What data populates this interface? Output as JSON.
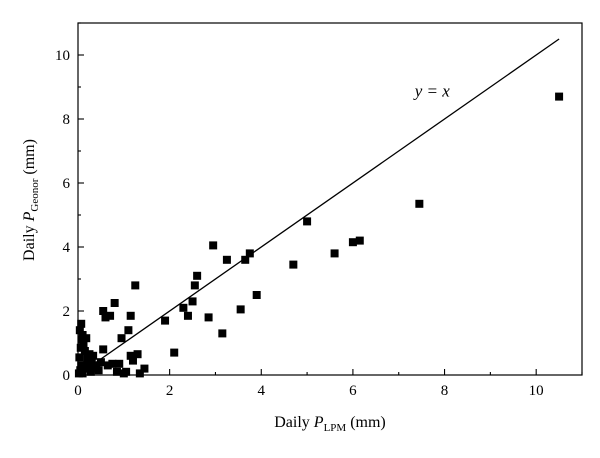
{
  "chart_data": {
    "type": "scatter",
    "xlabel": {
      "prefix": "Daily ",
      "var": "P",
      "sub": "LPM",
      "suffix": " (mm)"
    },
    "ylabel": {
      "prefix": "Daily ",
      "var": "P",
      "sub": "Geonor",
      "suffix": " (mm)"
    },
    "xlim": [
      0,
      11
    ],
    "ylim": [
      0,
      11
    ],
    "xticks": [
      0,
      2,
      4,
      6,
      8,
      10
    ],
    "yticks": [
      0,
      2,
      4,
      6,
      8,
      10
    ],
    "grid": false,
    "reference_line": {
      "label": "y = x",
      "slope": 1,
      "x_range": [
        0,
        10.5
      ]
    },
    "marker": {
      "shape": "square",
      "color": "#000000"
    },
    "series": [
      {
        "points": [
          [
            0.02,
            0.05
          ],
          [
            0.05,
            0.15
          ],
          [
            0.07,
            0.3
          ],
          [
            0.03,
            0.55
          ],
          [
            0.06,
            0.85
          ],
          [
            0.08,
            1.1
          ],
          [
            0.04,
            1.4
          ],
          [
            0.07,
            1.6
          ],
          [
            0.1,
            1.25
          ],
          [
            0.12,
            0.95
          ],
          [
            0.15,
            0.75
          ],
          [
            0.18,
            1.15
          ],
          [
            0.2,
            0.5
          ],
          [
            0.22,
            0.25
          ],
          [
            0.25,
            0.65
          ],
          [
            0.28,
            0.1
          ],
          [
            0.3,
            0.4
          ],
          [
            0.33,
            0.6
          ],
          [
            0.35,
            0.2
          ],
          [
            0.4,
            0.3
          ],
          [
            0.45,
            0.15
          ],
          [
            0.5,
            0.4
          ],
          [
            0.1,
            0.05
          ],
          [
            0.15,
            0.2
          ],
          [
            0.55,
            2.0
          ],
          [
            0.6,
            1.8
          ],
          [
            0.7,
            1.85
          ],
          [
            0.8,
            2.25
          ],
          [
            0.55,
            0.8
          ],
          [
            0.65,
            0.3
          ],
          [
            0.75,
            0.35
          ],
          [
            0.85,
            0.1
          ],
          [
            0.9,
            0.35
          ],
          [
            0.95,
            1.15
          ],
          [
            1.0,
            0.05
          ],
          [
            1.05,
            0.1
          ],
          [
            1.1,
            1.4
          ],
          [
            1.15,
            1.85
          ],
          [
            1.15,
            0.6
          ],
          [
            1.2,
            0.45
          ],
          [
            1.25,
            2.8
          ],
          [
            1.3,
            0.65
          ],
          [
            1.35,
            0.05
          ],
          [
            1.45,
            0.2
          ],
          [
            1.9,
            1.7
          ],
          [
            2.1,
            0.7
          ],
          [
            2.3,
            2.1
          ],
          [
            2.4,
            1.85
          ],
          [
            2.5,
            2.3
          ],
          [
            2.55,
            2.8
          ],
          [
            2.6,
            3.1
          ],
          [
            2.85,
            1.8
          ],
          [
            2.95,
            4.05
          ],
          [
            3.15,
            1.3
          ],
          [
            3.25,
            3.6
          ],
          [
            3.55,
            2.05
          ],
          [
            3.65,
            3.6
          ],
          [
            3.75,
            3.8
          ],
          [
            3.9,
            2.5
          ],
          [
            4.7,
            3.45
          ],
          [
            5.0,
            4.8
          ],
          [
            5.6,
            3.8
          ],
          [
            6.0,
            4.15
          ],
          [
            6.15,
            4.2
          ],
          [
            7.45,
            5.35
          ],
          [
            10.5,
            8.7
          ]
        ]
      }
    ]
  }
}
